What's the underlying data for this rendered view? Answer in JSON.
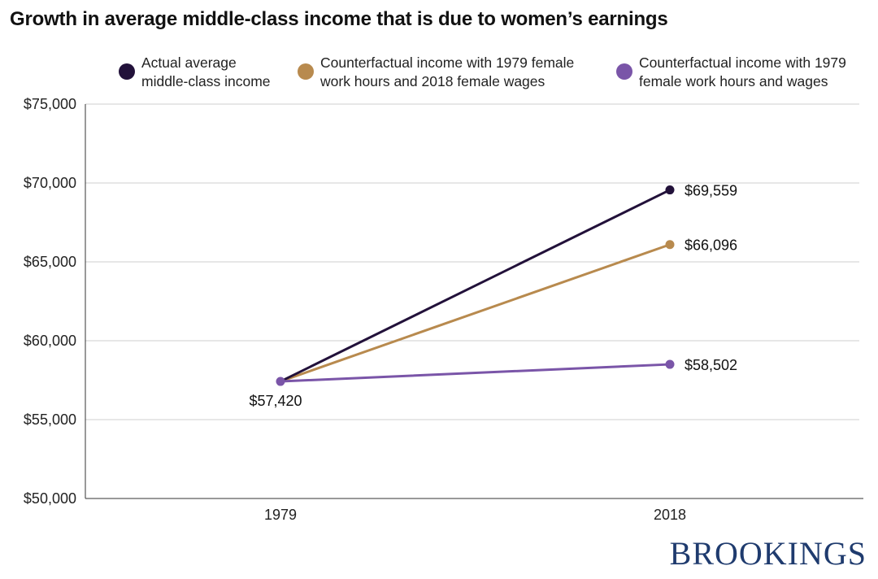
{
  "title": "Growth in average middle-class income that is due to women’s earnings",
  "logo": "BROOKINGS",
  "chart_data": {
    "type": "line",
    "title": "Growth in average middle-class income that is due to women’s earnings",
    "categories": [
      "1979",
      "2018"
    ],
    "ylim": [
      50000,
      75000
    ],
    "yticks": [
      50000,
      55000,
      60000,
      65000,
      70000,
      75000
    ],
    "ytick_labels": [
      "$50,000",
      "$55,000",
      "$60,000",
      "$65,000",
      "$70,000",
      "$75,000"
    ],
    "grid": true,
    "legend_position": "top",
    "series": [
      {
        "name": "Actual average\nmiddle-class income",
        "color": "#22113a",
        "values": [
          57420,
          69559
        ],
        "end_label": "$69,559"
      },
      {
        "name": "Counterfactual income with 1979 female\nwork hours and 2018 female wages",
        "color": "#b88a4e",
        "values": [
          57420,
          66096
        ],
        "end_label": "$66,096"
      },
      {
        "name": "Counterfactual income with 1979\nfemale work hours and wages",
        "color": "#7a55a8",
        "values": [
          57420,
          58502
        ],
        "end_label": "$58,502"
      }
    ],
    "start_label": "$57,420"
  }
}
